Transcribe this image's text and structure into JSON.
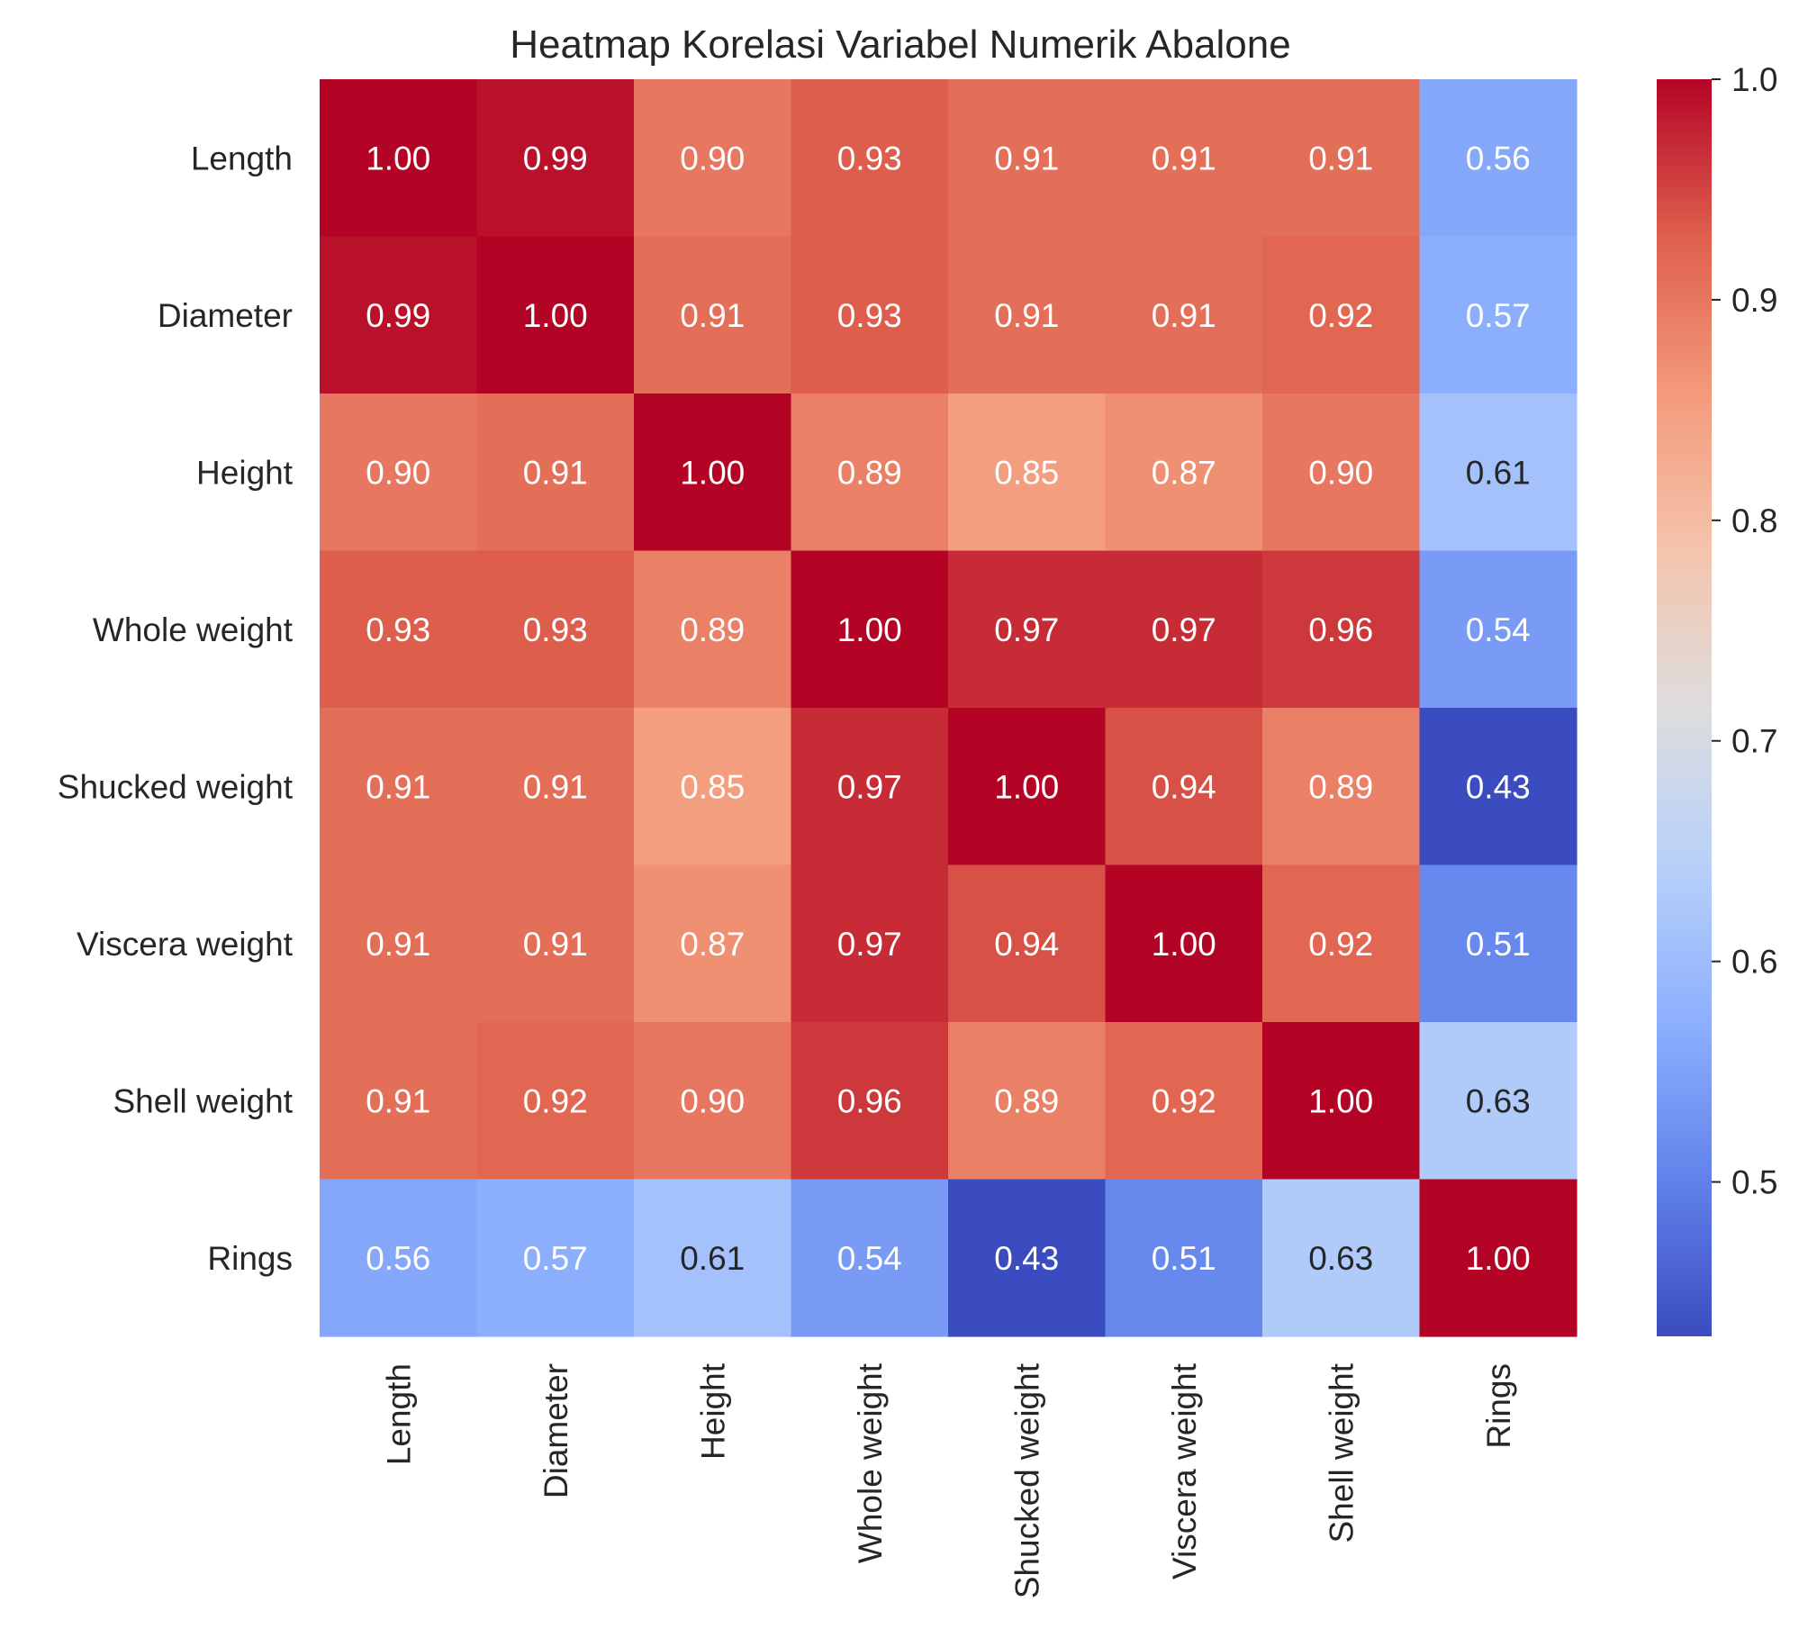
{
  "chart_data": {
    "type": "heatmap",
    "title": "Heatmap Korelasi Variabel Numerik Abalone",
    "variables": [
      "Length",
      "Diameter",
      "Height",
      "Whole weight",
      "Shucked weight",
      "Viscera weight",
      "Shell weight",
      "Rings"
    ],
    "matrix": [
      [
        1.0,
        0.99,
        0.9,
        0.93,
        0.91,
        0.91,
        0.91,
        0.56
      ],
      [
        0.99,
        1.0,
        0.91,
        0.93,
        0.91,
        0.91,
        0.92,
        0.57
      ],
      [
        0.9,
        0.91,
        1.0,
        0.89,
        0.85,
        0.87,
        0.9,
        0.61
      ],
      [
        0.93,
        0.93,
        0.89,
        1.0,
        0.97,
        0.97,
        0.96,
        0.54
      ],
      [
        0.91,
        0.91,
        0.85,
        0.97,
        1.0,
        0.94,
        0.89,
        0.43
      ],
      [
        0.91,
        0.91,
        0.87,
        0.97,
        0.94,
        1.0,
        0.92,
        0.51
      ],
      [
        0.91,
        0.92,
        0.9,
        0.96,
        0.89,
        0.92,
        1.0,
        0.63
      ],
      [
        0.56,
        0.57,
        0.61,
        0.54,
        0.43,
        0.51,
        0.63,
        1.0
      ]
    ],
    "labels_format": "2 decimals",
    "colormap": "coolwarm",
    "colorbar": {
      "range": [
        0.43,
        1.0
      ],
      "ticks": [
        "0.5",
        "0.6",
        "0.7",
        "0.8",
        "0.9",
        "1.0"
      ],
      "tick_values": [
        0.5,
        0.6,
        0.7,
        0.8,
        0.9,
        1.0
      ]
    },
    "legend": "colorbar right",
    "grid": false
  }
}
